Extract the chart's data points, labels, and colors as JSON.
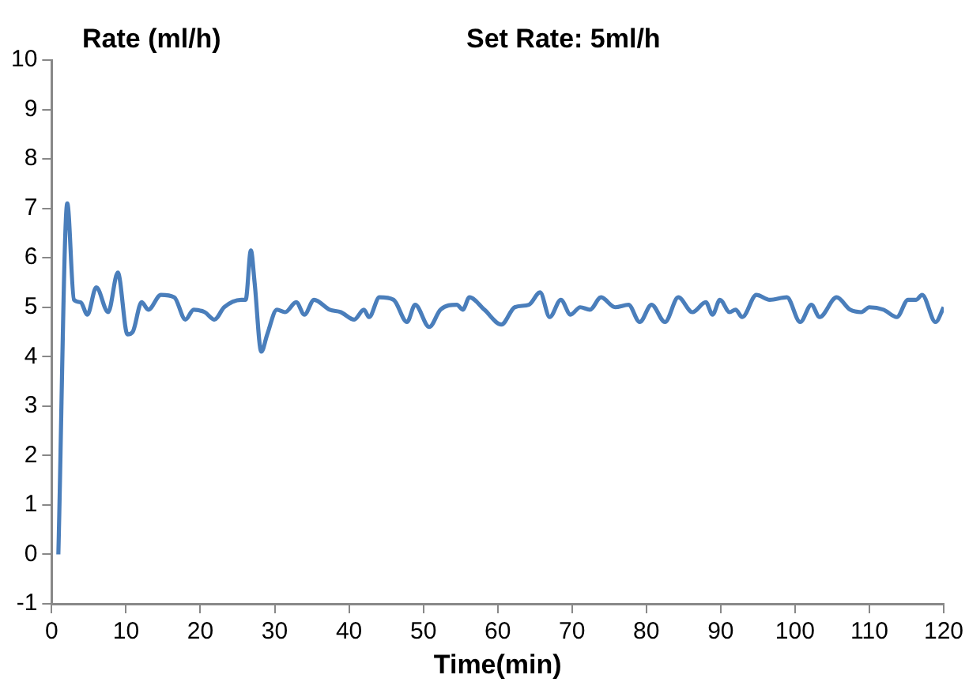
{
  "chart_data": {
    "type": "line",
    "title": "Set Rate: 5ml/h",
    "ylabel": "Rate (ml/h)",
    "xlabel": "Time(min)",
    "xlim": [
      0,
      120
    ],
    "xticks": [
      0,
      10,
      20,
      30,
      40,
      50,
      60,
      70,
      80,
      90,
      100,
      110,
      120
    ],
    "ylim": [
      -1,
      10
    ],
    "yticks": [
      -1,
      0,
      1,
      2,
      3,
      4,
      5,
      6,
      7,
      8,
      9,
      10
    ],
    "grid": false,
    "legend": false,
    "marker": "none",
    "line_style": "solid",
    "series": [
      {
        "color": "#4a7ebb",
        "x": [
          0.9,
          2.1,
          3.0,
          3.9,
          4.8,
          6.0,
          7.6,
          8.9,
          10.2,
          10.9,
          12.1,
          13.0,
          14.7,
          16.5,
          18.0,
          19.1,
          20.6,
          21.9,
          23.2,
          25.5,
          26.1,
          26.8,
          27.3,
          28.2,
          29.0,
          30.3,
          31.4,
          32.9,
          34.0,
          35.3,
          37.4,
          38.9,
          40.7,
          42.0,
          42.7,
          44.1,
          46.0,
          47.8,
          48.9,
          50.8,
          52.3,
          54.5,
          55.3,
          56.2,
          58.2,
          60.5,
          62.3,
          64.2,
          65.7,
          67.0,
          68.5,
          69.8,
          71.1,
          72.4,
          73.9,
          75.8,
          77.6,
          79.1,
          80.7,
          82.5,
          84.3,
          86.2,
          88.0,
          88.9,
          89.9,
          91.2,
          92.0,
          92.9,
          94.8,
          96.6,
          98.9,
          100.7,
          102.2,
          103.3,
          105.6,
          107.4,
          108.9,
          110.0,
          111.9,
          113.7,
          115.2,
          116.3,
          117.1,
          118.9,
          120.0
        ],
        "values": [
          0,
          7.1,
          5.15,
          5.1,
          4.85,
          5.4,
          4.9,
          5.7,
          4.45,
          4.5,
          5.1,
          4.95,
          5.25,
          5.2,
          4.75,
          4.95,
          4.9,
          4.75,
          5.0,
          5.15,
          5.15,
          6.15,
          5.5,
          4.1,
          4.45,
          4.95,
          4.9,
          5.1,
          4.85,
          5.15,
          4.95,
          4.9,
          4.75,
          4.95,
          4.8,
          5.2,
          5.15,
          4.7,
          5.05,
          4.6,
          4.95,
          5.05,
          4.95,
          5.2,
          4.95,
          4.65,
          5.0,
          5.05,
          5.3,
          4.8,
          5.15,
          4.85,
          5.0,
          4.95,
          5.2,
          5.0,
          5.05,
          4.7,
          5.05,
          4.7,
          5.2,
          4.9,
          5.1,
          4.85,
          5.15,
          4.9,
          4.95,
          4.8,
          5.25,
          5.15,
          5.2,
          4.7,
          5.05,
          4.8,
          5.2,
          4.95,
          4.9,
          5.0,
          4.95,
          4.8,
          5.15,
          5.15,
          5.25,
          4.7,
          5.0
        ]
      }
    ]
  }
}
